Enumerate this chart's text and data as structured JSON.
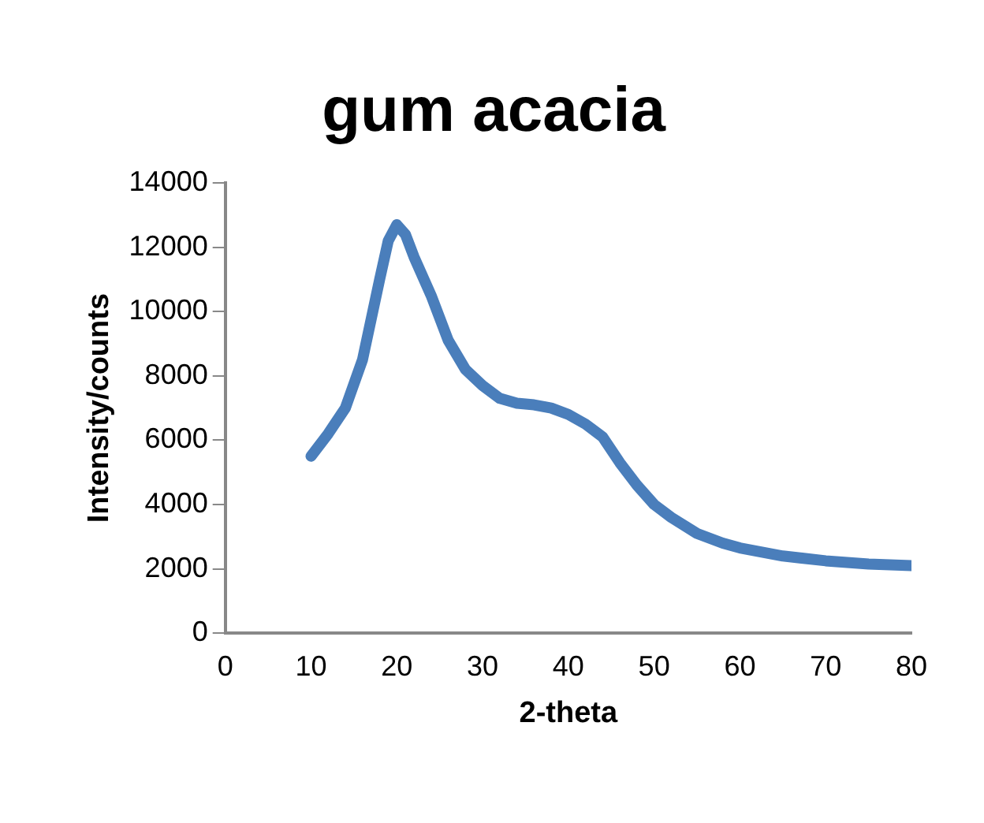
{
  "chart_data": {
    "type": "line",
    "title": "gum acacia",
    "xlabel": "2-theta",
    "ylabel": "Intensity/counts",
    "x": [
      10,
      12,
      14,
      16,
      18,
      19,
      20,
      21,
      22,
      24,
      26,
      28,
      30,
      32,
      34,
      36,
      38,
      40,
      42,
      44,
      46,
      48,
      50,
      52,
      55,
      58,
      60,
      65,
      70,
      75,
      80
    ],
    "series": [
      {
        "color": "#4a7ebb",
        "values": [
          5500,
          6200,
          7000,
          8500,
          11000,
          12200,
          12700,
          12400,
          11700,
          10500,
          9100,
          8200,
          7700,
          7300,
          7150,
          7100,
          7000,
          6800,
          6500,
          6100,
          5300,
          4600,
          4000,
          3600,
          3100,
          2800,
          2650,
          2400,
          2250,
          2150,
          2100
        ]
      }
    ],
    "xlim": [
      0,
      80
    ],
    "xticks": [
      0,
      10,
      20,
      30,
      40,
      50,
      60,
      70,
      80
    ],
    "ylim": [
      0,
      14000
    ],
    "yticks": [
      0,
      2000,
      4000,
      6000,
      8000,
      10000,
      12000,
      14000
    ],
    "grid": false,
    "legend": false,
    "marker": "none",
    "line_style": "solid"
  }
}
